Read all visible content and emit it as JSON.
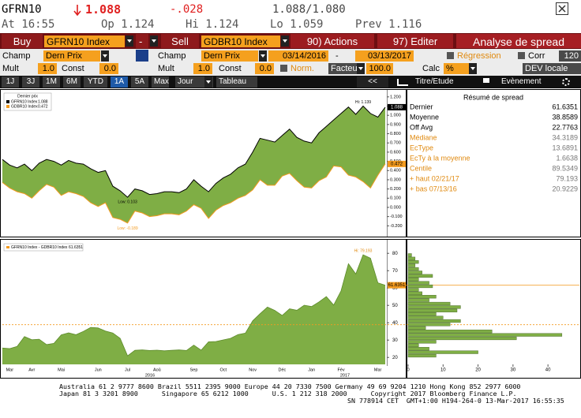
{
  "header": {
    "ticker": "GFRN10",
    "last": "1.088",
    "change": "-.028",
    "bid_ask": "1.088/1.080",
    "time": "At 16:55",
    "open": "Op 1.124",
    "high": "Hi 1.124",
    "low": "Lo 1.059",
    "prev": "Prev 1.116"
  },
  "toolbar": {
    "buy": "Buy",
    "buy_security": "GFRN10 Index",
    "minus": "-",
    "sell": "Sell",
    "sell_security": "GDBR10 Index",
    "actions": "90) Actions",
    "edit": "97) Editer",
    "title": "Analyse de spread"
  },
  "settings": {
    "field_label_1": "Champ",
    "field_1": "Dern Prix",
    "field_label_2": "Champ",
    "field_2": "Dern Prix",
    "start_date": "03/14/2016",
    "date_separator": "-",
    "end_date": "03/13/2017",
    "regression": "Régression",
    "corr": "Corr",
    "corr_window": "120",
    "mult_label_1": "Mult",
    "mult_1": "1.0",
    "const_label_1": "Const",
    "const_1": "0.0",
    "mult_label_2": "Mult",
    "mult_2": "1.0",
    "const_label_2": "Const",
    "const_2": "0.0",
    "norm": "Norm.",
    "factor_label": "Facteur",
    "factor": "100.0",
    "calc_label": "Calc",
    "calc": "%",
    "currency": "DEV locale"
  },
  "tabs": {
    "periods": [
      "1J",
      "3J",
      "1M",
      "6M",
      "YTD",
      "1A",
      "5A",
      "Max"
    ],
    "selected_period": "1A",
    "frequency": "Jour",
    "table": "Tableau",
    "collapse": "<<",
    "study": "Titre/Etude",
    "event": "Evènement"
  },
  "summary": {
    "title": "Résumé de spread",
    "rows": [
      {
        "label": "Dernier",
        "value": 61.6351
      },
      {
        "label": "Moyenne",
        "value": 38.8589
      },
      {
        "label": "Off Avg",
        "value": 22.7763
      }
    ],
    "detail_rows": [
      {
        "label": "Médiane",
        "value": 34.3189
      },
      {
        "label": "EcType",
        "value": 13.6891
      },
      {
        "label": "EcTy à la moyenne",
        "value": 1.6638
      },
      {
        "label": "Centile",
        "value": 89.5349
      },
      {
        "label": "+ haut 02/21/17",
        "value": 79.193
      },
      {
        "label": "+ bas 07/13/16",
        "value": 20.9229
      }
    ]
  },
  "chart_data": [
    {
      "type": "line",
      "legend_title": "Dernier prix",
      "fill_between": true,
      "fill_color": "#7fae45",
      "series": [
        {
          "name": "GFRN10 Index",
          "color": "#000000",
          "values": [
            0.52,
            0.46,
            0.43,
            0.47,
            0.4,
            0.48,
            0.52,
            0.5,
            0.46,
            0.51,
            0.48,
            0.47,
            0.42,
            0.38,
            0.4,
            0.23,
            0.18,
            0.11,
            0.2,
            0.18,
            0.14,
            0.15,
            0.17,
            0.17,
            0.16,
            0.2,
            0.3,
            0.23,
            0.17,
            0.26,
            0.32,
            0.36,
            0.43,
            0.47,
            0.6,
            0.75,
            0.73,
            0.71,
            0.78,
            0.85,
            0.76,
            0.72,
            0.7,
            0.81,
            0.88,
            0.95,
            1.02,
            1.09,
            1.01,
            1.1,
            1.02,
            0.98,
            1.088
          ]
        },
        {
          "name": "GDBR10 Index",
          "color": "#f39a1e",
          "values": [
            0.27,
            0.21,
            0.17,
            0.15,
            0.1,
            0.18,
            0.25,
            0.22,
            0.13,
            0.17,
            0.15,
            0.12,
            0.05,
            0.01,
            0.05,
            -0.11,
            -0.13,
            -0.17,
            -0.04,
            -0.06,
            -0.1,
            -0.09,
            -0.07,
            -0.07,
            -0.08,
            -0.04,
            0.03,
            -0.01,
            -0.12,
            -0.03,
            0.02,
            0.05,
            0.1,
            0.13,
            0.19,
            0.3,
            0.24,
            0.24,
            0.34,
            0.37,
            0.29,
            0.22,
            0.21,
            0.29,
            0.33,
            0.45,
            0.44,
            0.35,
            0.33,
            0.28,
            0.21,
            0.35,
            0.472
          ]
        }
      ],
      "ylim": [
        -0.3,
        1.25
      ],
      "yticks": [
        {
          "value": 1.2,
          "label": "1.200"
        },
        {
          "value": 1.1,
          "label": "1.100"
        },
        {
          "value": 1.0,
          "label": "1.000"
        },
        {
          "value": 0.9,
          "label": "0.900"
        },
        {
          "value": 0.8,
          "label": "0.800"
        },
        {
          "value": 0.7,
          "label": "0.700"
        },
        {
          "value": 0.6,
          "label": "0.600"
        },
        {
          "value": 0.5,
          "label": "0.500"
        },
        {
          "value": 0.4,
          "label": "0.400"
        },
        {
          "value": 0.3,
          "label": "0.300"
        },
        {
          "value": 0.2,
          "label": "0.200"
        },
        {
          "value": 0.1,
          "label": "0.100"
        },
        {
          "value": 0,
          "label": "0.000"
        },
        {
          "value": -0.1,
          "label": "-0.100"
        },
        {
          "value": -0.2,
          "label": "-0.200"
        }
      ],
      "annotations": [
        "Hi: 1.139",
        "Low: 0.103",
        "Low: -0.189"
      ]
    },
    {
      "type": "area",
      "categories": [
        null,
        "Mar",
        null,
        null,
        "Avr",
        null,
        null,
        null,
        "Mai",
        null,
        null,
        null,
        null,
        "Jun",
        null,
        null,
        null,
        "Jul",
        null,
        null,
        null,
        "Aoû",
        null,
        null,
        null,
        null,
        "Sep",
        null,
        null,
        null,
        "Oct",
        null,
        null,
        null,
        "Nov",
        null,
        null,
        null,
        "Déc",
        null,
        null,
        null,
        "Jan",
        null,
        null,
        null,
        "Fév",
        null,
        null,
        null,
        null,
        "Mar",
        null
      ],
      "year_labels": [
        "2016",
        "2017"
      ],
      "series": [
        {
          "name": "GFRN10 Index - GDBR10 Index",
          "color": "#7fae45",
          "values": [
            25.4,
            25.1,
            26.3,
            32.0,
            30.2,
            30.5,
            27.4,
            28.1,
            33.0,
            34.2,
            33.1,
            35.0,
            37.3,
            37.0,
            35.2,
            34.1,
            31.0,
            20.9229,
            24.1,
            24.3,
            24.0,
            24.2,
            23.8,
            24.1,
            24.3,
            24.0,
            27.1,
            24.2,
            29.0,
            29.2,
            30.1,
            31.0,
            33.2,
            34.0,
            41.1,
            45.2,
            49.0,
            47.1,
            44.2,
            48.0,
            47.2,
            50.1,
            49.3,
            52.0,
            55.1,
            50.2,
            58.3,
            74.0,
            68.1,
            79.193,
            77.2,
            63.0,
            61.6351
          ]
        }
      ],
      "mean_line_color": "#f39a1e",
      "ylim": [
        16,
        86
      ],
      "yticks": [
        20,
        30,
        40,
        50,
        60,
        70,
        80
      ],
      "annotations": [
        "Hi: 79.193"
      ]
    },
    {
      "type": "histogram",
      "orientation": "horizontal",
      "color": "#7fae45",
      "bins": [
        20,
        22,
        24,
        26,
        28,
        30,
        32,
        34,
        36,
        38,
        40,
        42,
        44,
        46,
        48,
        50,
        52,
        54,
        56,
        58,
        60,
        62,
        64,
        66,
        68,
        70,
        72,
        74,
        76,
        78,
        80
      ],
      "counts": [
        8,
        20,
        6,
        3,
        8,
        31,
        44,
        24,
        5,
        12,
        15,
        10,
        8,
        14,
        15,
        12,
        6,
        8,
        4,
        3,
        7,
        6,
        3,
        7,
        4,
        3,
        2,
        3,
        2,
        1
      ],
      "xlim": [
        0,
        49
      ],
      "xticks": [
        0,
        10,
        20,
        30,
        40
      ],
      "ylim": [
        16,
        86
      ]
    }
  ],
  "footer": {
    "lines": [
      "Australia 61 2 9777 8600 Brazil 5511 2395 9000 Europe 44 20 7330 7500 Germany 49 69 9204 1210 Hong Kong 852 2977 6000",
      "Japan 81 3 3201 8900      Singapore 65 6212 1000      U.S. 1 212 318 2000      Copyright 2017 Bloomberg Finance L.P.",
      "SN 778914 CET  GMT+1:00 H194-264-0 13-Mar-2017 16:55:35"
    ]
  }
}
